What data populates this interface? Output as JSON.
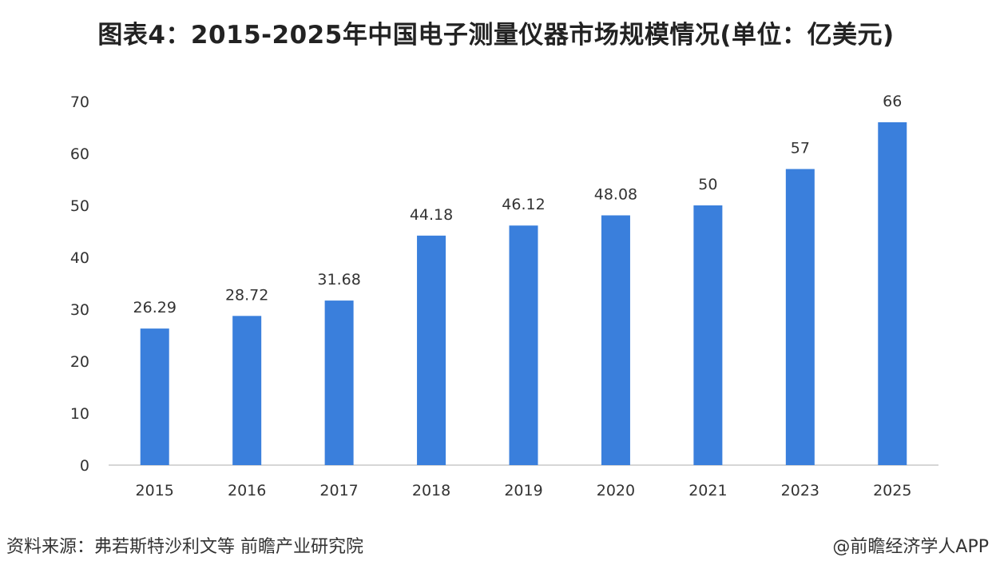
{
  "chart_data": {
    "type": "bar",
    "title": "图表4：2015-2025年中国电子测量仪器市场规模情况(单位：亿美元)",
    "xlabel": "",
    "ylabel": "",
    "categories": [
      "2015",
      "2016",
      "2017",
      "2018",
      "2019",
      "2020",
      "2021",
      "2023",
      "2025"
    ],
    "values": [
      26.29,
      28.72,
      31.68,
      44.18,
      46.12,
      48.08,
      50,
      57,
      66
    ],
    "data_labels": [
      "26.29",
      "28.72",
      "31.68",
      "44.18",
      "46.12",
      "48.08",
      "50",
      "57",
      "66"
    ],
    "ylim": [
      0,
      70
    ],
    "yticks": [
      0,
      10,
      20,
      30,
      40,
      50,
      60,
      70
    ],
    "grid": false,
    "legend": "none",
    "bar_color": "#3a7fdc"
  },
  "footer": {
    "source": "资料来源：弗若斯特沙利文等 前瞻产业研究院",
    "credit": "@前瞻经济学人APP"
  }
}
